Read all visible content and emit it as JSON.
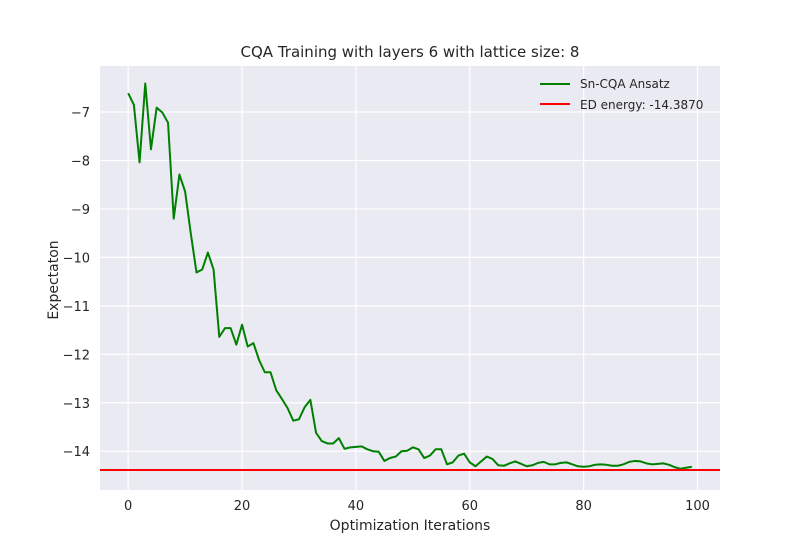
{
  "chart_data": {
    "type": "line",
    "title": "CQA Training with layers 6 with lattice size: 8",
    "xlabel": "Optimization Iterations",
    "ylabel": "Expectaton",
    "xlim": [
      -4.95,
      103.95
    ],
    "ylim": [
      -14.8,
      -6.05
    ],
    "xticks": [
      0,
      20,
      40,
      60,
      80,
      100
    ],
    "yticks": [
      -14,
      -13,
      -12,
      -11,
      -10,
      -9,
      -8,
      -7
    ],
    "xtick_labels": [
      "0",
      "20",
      "40",
      "60",
      "80",
      "100"
    ],
    "ytick_labels": [
      "−14",
      "−13",
      "−12",
      "−11",
      "−10",
      "−9",
      "−8",
      "−7"
    ],
    "grid": true,
    "legend_position": "upper right",
    "series": [
      {
        "name": "Sn-CQA Ansatz",
        "color": "#008000",
        "kind": "line",
        "x": [
          0,
          1,
          2,
          3,
          4,
          5,
          6,
          7,
          8,
          9,
          10,
          11,
          12,
          13,
          14,
          15,
          16,
          17,
          18,
          19,
          20,
          21,
          22,
          23,
          24,
          25,
          26,
          27,
          28,
          29,
          30,
          31,
          32,
          33,
          34,
          35,
          36,
          37,
          38,
          39,
          40,
          41,
          42,
          43,
          44,
          45,
          46,
          47,
          48,
          49,
          50,
          51,
          52,
          53,
          54,
          55,
          56,
          57,
          58,
          59,
          60,
          61,
          62,
          63,
          64,
          65,
          66,
          67,
          68,
          69,
          70,
          71,
          72,
          73,
          74,
          75,
          76,
          77,
          78,
          79,
          80,
          81,
          82,
          83,
          84,
          85,
          86,
          87,
          88,
          89,
          90,
          91,
          92,
          93,
          94,
          95,
          96,
          97,
          98,
          99
        ],
        "y": [
          -6.61,
          -6.85,
          -8.04,
          -6.41,
          -7.77,
          -6.91,
          -7.01,
          -7.22,
          -9.2,
          -8.29,
          -8.64,
          -9.51,
          -10.31,
          -10.25,
          -9.9,
          -10.25,
          -11.64,
          -11.46,
          -11.46,
          -11.8,
          -11.39,
          -11.84,
          -11.77,
          -12.12,
          -12.37,
          -12.37,
          -12.74,
          -12.92,
          -13.11,
          -13.37,
          -13.34,
          -13.09,
          -12.94,
          -13.62,
          -13.79,
          -13.84,
          -13.84,
          -13.73,
          -13.95,
          -13.92,
          -13.91,
          -13.9,
          -13.96,
          -14.0,
          -14.01,
          -14.2,
          -14.14,
          -14.11,
          -14.0,
          -13.99,
          -13.92,
          -13.96,
          -14.14,
          -14.09,
          -13.96,
          -13.96,
          -14.27,
          -14.23,
          -14.09,
          -14.05,
          -14.23,
          -14.31,
          -14.21,
          -14.11,
          -14.16,
          -14.29,
          -14.3,
          -14.25,
          -14.21,
          -14.26,
          -14.31,
          -14.29,
          -14.24,
          -14.22,
          -14.27,
          -14.27,
          -14.24,
          -14.23,
          -14.27,
          -14.31,
          -14.32,
          -14.31,
          -14.28,
          -14.27,
          -14.28,
          -14.3,
          -14.3,
          -14.27,
          -14.22,
          -14.2,
          -14.21,
          -14.25,
          -14.27,
          -14.26,
          -14.25,
          -14.28,
          -14.33,
          -14.36,
          -14.34,
          -14.32
        ]
      },
      {
        "name": "ED energy: -14.3870",
        "color": "#ff0000",
        "kind": "hline",
        "y": -14.387
      }
    ]
  }
}
